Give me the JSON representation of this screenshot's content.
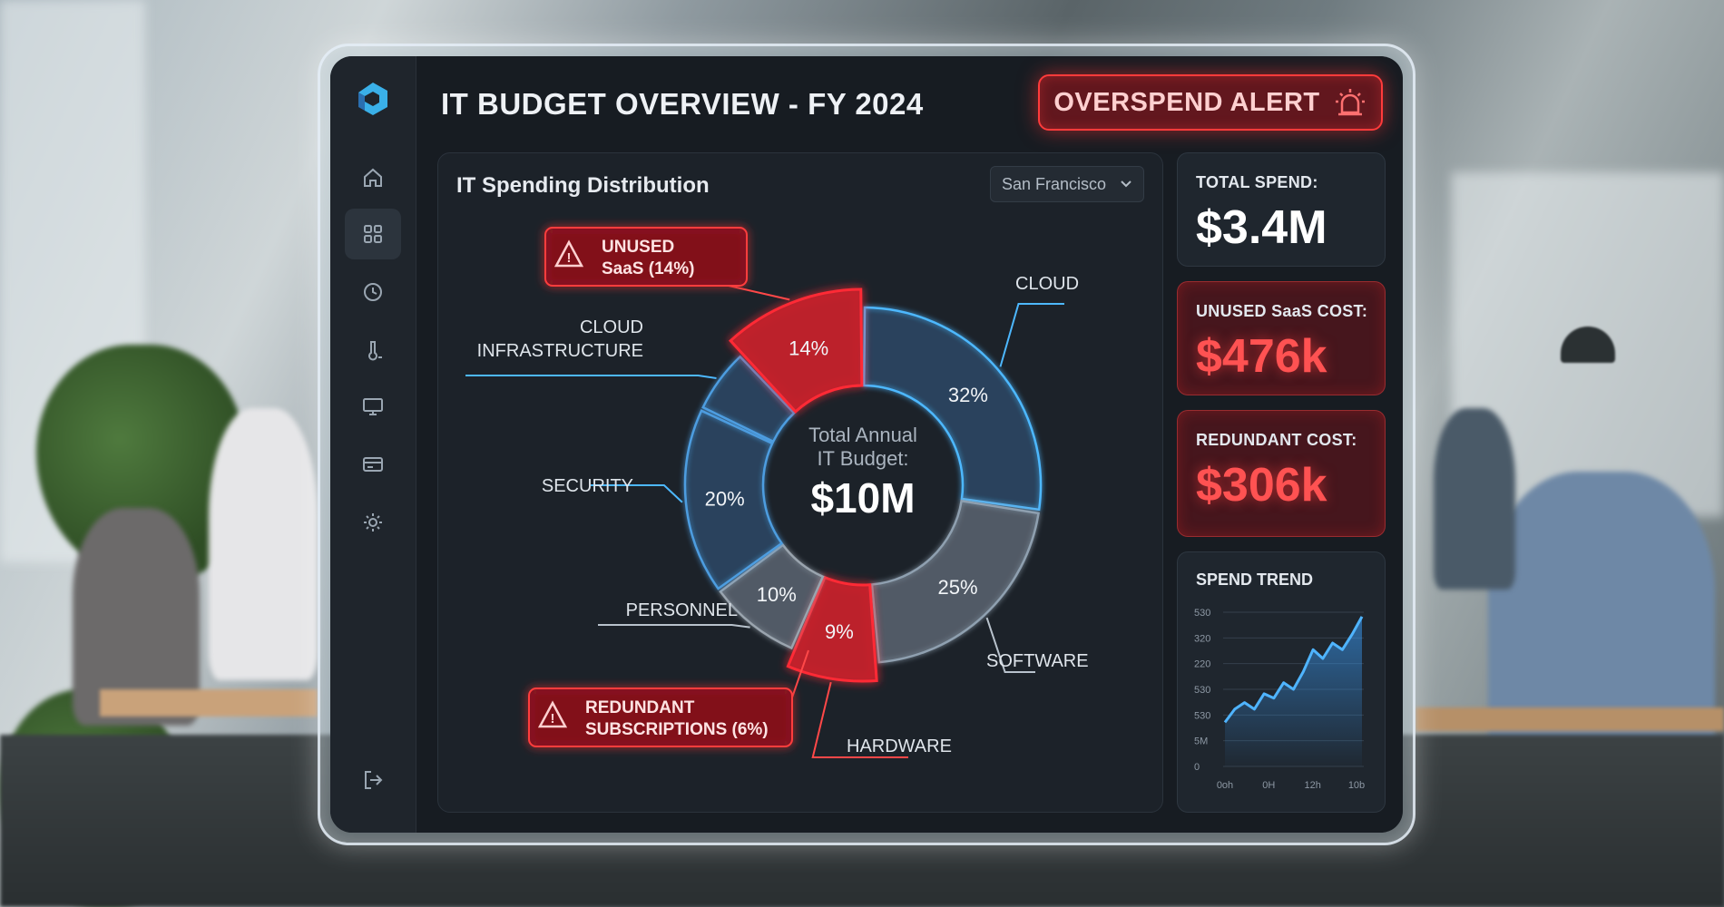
{
  "header": {
    "title": "IT BUDGET OVERVIEW - FY 2024"
  },
  "alert": {
    "label": "OVERSPEND ALERT"
  },
  "sidebar": {
    "items": [
      {
        "icon": "home-icon"
      },
      {
        "icon": "dashboard-icon",
        "active": true
      },
      {
        "icon": "history-icon"
      },
      {
        "icon": "thermometer-icon"
      },
      {
        "icon": "monitor-icon"
      },
      {
        "icon": "card-icon"
      },
      {
        "icon": "gear-icon"
      }
    ],
    "logout_icon": "logout-icon"
  },
  "panel": {
    "title": "IT Spending Distribution",
    "location": "San Francisco",
    "center": {
      "line1": "Total Annual",
      "line2": "IT Budget:",
      "value": "$10M"
    },
    "warnings": [
      {
        "line1": "UNUSED",
        "line2": "SaaS (14%)"
      },
      {
        "line1": "REDUNDANT",
        "line2": "SUBSCRIPTIONS (6%)"
      }
    ]
  },
  "chart_data": [
    {
      "type": "pie",
      "segments": [
        {
          "label": "CLOUD",
          "value_label": "32%",
          "value": 32,
          "color": "#4db8ff",
          "highlight": false
        },
        {
          "label": "SOFTWARE",
          "value_label": "25%",
          "value": 25,
          "color": "#8fa0b0",
          "highlight": false
        },
        {
          "label": "HARDWARE",
          "value_label": "9%",
          "value": 9,
          "color": "#ff2a36",
          "highlight": true
        },
        {
          "label": "PERSONNEL",
          "value_label": "10%",
          "value": 10,
          "color": "#9aa4ae",
          "highlight": false
        },
        {
          "label": "SECURITY",
          "value_label": "20%",
          "value": 20,
          "color": "#4d9de0",
          "highlight": false
        },
        {
          "label": "CLOUD INFRASTRUCTURE",
          "value_label": "",
          "value": 7,
          "color": "#4d9de0",
          "highlight": false
        },
        {
          "label": "UNUSED SaaS",
          "value_label": "14%",
          "value": 14,
          "color": "#ff2a36",
          "highlight": true
        }
      ]
    },
    {
      "type": "line",
      "title": "SPEND TREND",
      "y_ticks": [
        "530",
        "320",
        "220",
        "530",
        "530",
        "5M",
        "0"
      ],
      "x_ticks": [
        "0oh",
        "0H",
        "12h",
        "10b"
      ],
      "values": [
        2.0,
        2.6,
        2.9,
        2.6,
        3.3,
        3.1,
        3.8,
        3.5,
        4.3,
        5.3,
        4.9,
        5.6,
        5.3,
        6.0,
        6.8
      ]
    }
  ],
  "cards": [
    {
      "label": "TOTAL SPEND:",
      "value": "$3.4M"
    },
    {
      "label": "UNUSED SaaS COST:",
      "value": "$476k"
    },
    {
      "label": "REDUNDANT COST:",
      "value": "$306k"
    }
  ]
}
